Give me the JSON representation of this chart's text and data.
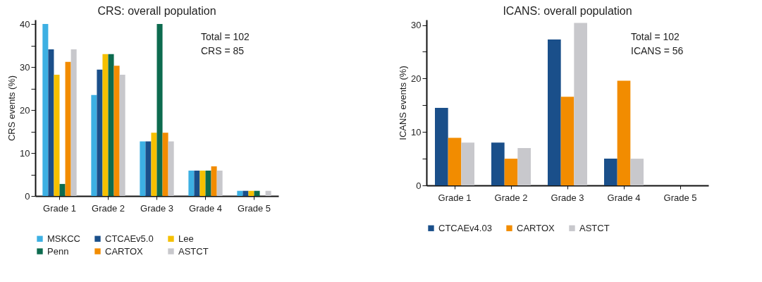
{
  "chart_data": [
    {
      "type": "bar",
      "title": "CRS: overall population",
      "ylabel": "CRS events (%)",
      "categories": [
        "Grade 1",
        "Grade 2",
        "Grade 3",
        "Grade 4",
        "Grade 5"
      ],
      "series": [
        {
          "name": "MSKCC",
          "color": "#3db0e3",
          "values": [
            40,
            23.5,
            12.7,
            5.9,
            1.2
          ]
        },
        {
          "name": "CTCAEv5.0",
          "color": "#1a4f8a",
          "values": [
            34.1,
            29.4,
            12.7,
            5.9,
            1.2
          ]
        },
        {
          "name": "Lee",
          "color": "#f5c000",
          "values": [
            28.2,
            33,
            14.7,
            5.9,
            1.2
          ]
        },
        {
          "name": "Penn",
          "color": "#0d6b4f",
          "values": [
            2.8,
            33,
            40,
            5.9,
            1.2
          ]
        },
        {
          "name": "CARTOX",
          "color": "#f28c00",
          "values": [
            31.2,
            30.3,
            14.7,
            6.9,
            0
          ]
        },
        {
          "name": "ASTCT",
          "color": "#c8c8cc",
          "values": [
            34.1,
            28.2,
            12.7,
            5.9,
            1.2
          ]
        }
      ],
      "ylim": [
        0,
        41
      ],
      "yticks": [
        0,
        {
          "value": 5,
          "label": null
        },
        10,
        {
          "value": 15,
          "label": null
        },
        20,
        {
          "value": 25,
          "label": null
        },
        30,
        {
          "value": 35,
          "label": null
        },
        40
      ],
      "grid": false,
      "legend": "bottom",
      "annotations": [
        "Total = 102",
        "CRS = 85"
      ]
    },
    {
      "type": "bar",
      "title": "ICANS: overall population",
      "ylabel": "ICANS events (%)",
      "categories": [
        "Grade 1",
        "Grade 2",
        "Grade 3",
        "Grade 4",
        "Grade 5"
      ],
      "series": [
        {
          "name": "CTCAEv4.03",
          "color": "#1a4f8a",
          "values": [
            14.5,
            8,
            27.3,
            5,
            0
          ]
        },
        {
          "name": "CARTOX",
          "color": "#f28c00",
          "values": [
            8.9,
            5,
            16.6,
            19.6,
            0
          ]
        },
        {
          "name": "ASTCT",
          "color": "#c8c8cc",
          "values": [
            8,
            7,
            30.4,
            5,
            0
          ]
        }
      ],
      "ylim": [
        0,
        31
      ],
      "yticks": [
        0,
        {
          "value": 5,
          "label": null
        },
        10,
        {
          "value": 15,
          "label": null
        },
        20,
        {
          "value": 25,
          "label": null
        },
        30
      ],
      "grid": false,
      "legend": "bottom",
      "annotations": [
        "Total = 102",
        "ICANS = 56"
      ]
    }
  ]
}
